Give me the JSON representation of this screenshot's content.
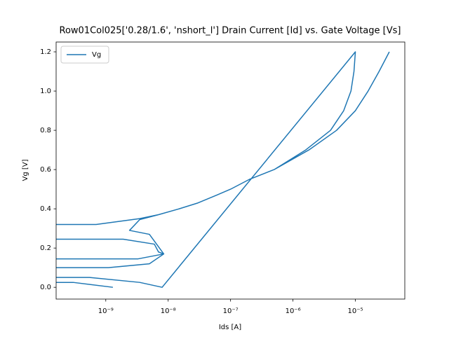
{
  "chart_data": {
    "type": "line",
    "title": "Row01Col025['0.28/1.6', 'nshort_l'] Drain Current [Id] vs. Gate Voltage [Vs]",
    "xlabel": "Ids [A]",
    "ylabel": "Vg [V]",
    "xscale": "log",
    "x": [
      1.3e-09,
      3e-10,
      1e-10,
      1e-10,
      5.5e-10,
      3.5e-09,
      8e-09,
      1e-05,
      9.5e-06,
      8.5e-06,
      6.5e-06,
      4e-06,
      1.6e-06,
      5e-07,
      2e-07,
      1e-07,
      6e-08,
      3e-08,
      1.5e-08,
      7e-09,
      3.5e-09,
      7e-10,
      1e-10,
      1e-10,
      1.9e-09,
      6e-09,
      7e-09,
      8.5e-09,
      3.3e-09,
      1e-10,
      1e-10,
      1.1e-09,
      5e-09,
      8.5e-09,
      5e-09,
      2.4e-09,
      3.5e-09,
      7e-09,
      1.5e-08,
      3e-08,
      6e-08,
      1e-07,
      2e-07,
      5e-07,
      1.8e-06,
      5e-06,
      1e-05,
      1.6e-05,
      2.4e-05,
      3.5e-05
    ],
    "series": [
      {
        "name": "Vg",
        "color": "#1f77b4",
        "values": [
          0,
          0.025,
          0.025,
          0.05,
          0.05,
          0.025,
          0,
          1.2,
          1.1,
          1.0,
          0.9,
          0.8,
          0.7,
          0.6,
          0.55,
          0.5,
          0.47,
          0.43,
          0.4,
          0.37,
          0.35,
          0.32,
          0.32,
          0.245,
          0.245,
          0.22,
          0.18,
          0.17,
          0.145,
          0.145,
          0.1,
          0.1,
          0.12,
          0.17,
          0.27,
          0.29,
          0.345,
          0.37,
          0.4,
          0.43,
          0.47,
          0.5,
          0.55,
          0.6,
          0.7,
          0.8,
          0.9,
          1.0,
          1.1,
          1.2
        ]
      }
    ],
    "xlim": [
      1.6e-10,
      6.2e-05
    ],
    "xticks": [
      {
        "value": 1e-09,
        "label": "10⁻⁹"
      },
      {
        "value": 1e-08,
        "label": "10⁻⁸"
      },
      {
        "value": 1e-07,
        "label": "10⁻⁷"
      },
      {
        "value": 1e-06,
        "label": "10⁻⁶"
      },
      {
        "value": 1e-05,
        "label": "10⁻⁵"
      }
    ],
    "ylim": [
      -0.06,
      1.25
    ],
    "yticks": [
      {
        "value": 0,
        "label": "0.0"
      },
      0.2,
      0.4,
      0.6,
      0.8,
      {
        "value": 1,
        "label": "1.0"
      },
      1.2
    ],
    "legend": "upper left"
  }
}
